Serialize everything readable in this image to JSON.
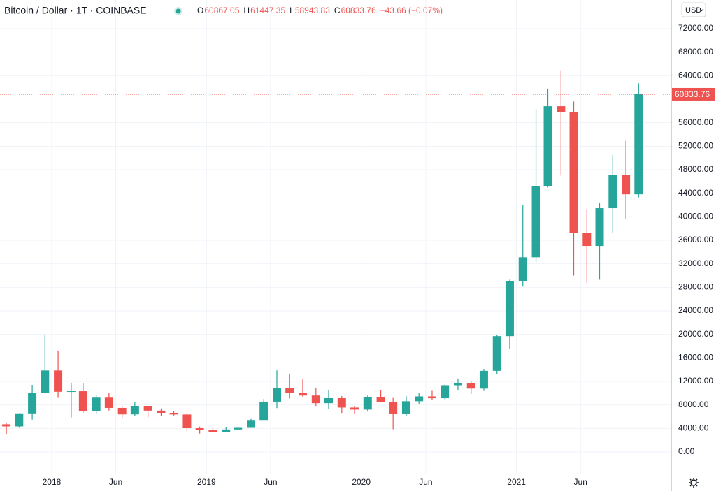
{
  "header": {
    "symbol": "Bitcoin / Dollar · 1T · COINBASE",
    "ohlc": [
      {
        "label": "O",
        "value": 60867.05
      },
      {
        "label": "H",
        "value": 61447.35
      },
      {
        "label": "L",
        "value": 58943.83
      },
      {
        "label": "C",
        "value": 60833.76
      }
    ],
    "change": "−43.66 (−0.07%)",
    "currency": "USD"
  },
  "chart_data": {
    "type": "candlestick",
    "up_color": "#26a69a",
    "down_color": "#ef5350",
    "grid": true,
    "x": [
      "2017-09",
      "2017-10",
      "2017-11",
      "2017-12",
      "2018-01",
      "2018-02",
      "2018-03",
      "2018-04",
      "2018-05",
      "2018-06",
      "2018-07",
      "2018-08",
      "2018-09",
      "2018-10",
      "2018-11",
      "2018-12",
      "2019-01",
      "2019-02",
      "2019-03",
      "2019-04",
      "2019-05",
      "2019-06",
      "2019-07",
      "2019-08",
      "2019-09",
      "2019-10",
      "2019-11",
      "2019-12",
      "2020-01",
      "2020-02",
      "2020-03",
      "2020-04",
      "2020-05",
      "2020-06",
      "2020-07",
      "2020-08",
      "2020-09",
      "2020-10",
      "2020-11",
      "2020-12",
      "2021-01",
      "2021-02",
      "2021-03",
      "2021-04",
      "2021-05",
      "2021-06",
      "2021-07",
      "2021-08",
      "2021-09",
      "2021-10"
    ],
    "open": [
      4700,
      4340,
      6440,
      10000,
      13860,
      10240,
      10330,
      6930,
      9240,
      7490,
      6390,
      7730,
      7030,
      6630,
      6370,
      4040,
      3690,
      3440,
      3820,
      4100,
      5320,
      8560,
      10820,
      10080,
      9600,
      8300,
      9150,
      7550,
      7200,
      9350,
      8540,
      6420,
      8630,
      9450,
      9140,
      11350,
      11660,
      10780,
      13800,
      19700,
      28990,
      33110,
      45160,
      58800,
      57750,
      37300,
      35040,
      41460,
      47100,
      43820
    ],
    "high": [
      4975,
      6470,
      11400,
      19890,
      17250,
      11780,
      11700,
      9750,
      10000,
      7770,
      8500,
      7760,
      7400,
      7000,
      6600,
      4300,
      4070,
      4190,
      4140,
      5620,
      9000,
      13880,
      13200,
      12330,
      10900,
      10540,
      9520,
      7750,
      9580,
      10500,
      9200,
      9470,
      10080,
      10400,
      11450,
      12480,
      12070,
      14100,
      19940,
      29300,
      41990,
      58350,
      61790,
      64900,
      59600,
      41300,
      42300,
      50500,
      52900,
      62700
    ],
    "low": [
      2980,
      4110,
      5500,
      10400,
      9200,
      5870,
      6600,
      6430,
      7040,
      5780,
      6100,
      5880,
      6100,
      6200,
      3550,
      3130,
      3350,
      3380,
      3730,
      4090,
      5330,
      7460,
      9100,
      9350,
      7710,
      7300,
      6510,
      6430,
      6870,
      8460,
      3860,
      6150,
      8100,
      8900,
      8990,
      10550,
      9880,
      10380,
      13200,
      17600,
      28130,
      32300,
      45000,
      47000,
      30000,
      28800,
      29300,
      37300,
      39600,
      43300
    ],
    "close": [
      4340,
      6440,
      10000,
      13860,
      10240,
      10330,
      6930,
      9240,
      7490,
      6390,
      7730,
      7030,
      6630,
      6370,
      4040,
      3690,
      3440,
      3820,
      4100,
      5320,
      8560,
      10820,
      10080,
      9600,
      8300,
      9150,
      7550,
      7200,
      9350,
      8540,
      6420,
      8630,
      9450,
      9140,
      11350,
      11660,
      10780,
      13800,
      19700,
      28990,
      33110,
      45160,
      58800,
      57750,
      37300,
      35040,
      41460,
      47100,
      43820,
      60833.76
    ],
    "last_price": 60833.76,
    "xlim": [
      "2017-09",
      "2022-01"
    ],
    "xticks": [
      {
        "value": "2018-01",
        "label": "2018"
      },
      {
        "value": "2018-06",
        "label": "Jun"
      },
      {
        "value": "2019-01",
        "label": "2019"
      },
      {
        "value": "2019-06",
        "label": "Jun"
      },
      {
        "value": "2020-01",
        "label": "2020"
      },
      {
        "value": "2020-06",
        "label": "Jun"
      },
      {
        "value": "2021-01",
        "label": "2021"
      },
      {
        "value": "2021-06",
        "label": "Jun"
      }
    ],
    "ylim": [
      -3683,
      76870
    ],
    "yticks": [
      {
        "value": 0,
        "label": "0.00"
      },
      {
        "value": 4000,
        "label": "4000.00"
      },
      {
        "value": 8000,
        "label": "8000.00"
      },
      {
        "value": 12000,
        "label": "12000.00"
      },
      {
        "value": 16000,
        "label": "16000.00"
      },
      {
        "value": 20000,
        "label": "20000.00"
      },
      {
        "value": 24000,
        "label": "24000.00"
      },
      {
        "value": 28000,
        "label": "28000.00"
      },
      {
        "value": 32000,
        "label": "32000.00"
      },
      {
        "value": 36000,
        "label": "36000.00"
      },
      {
        "value": 40000,
        "label": "40000.00"
      },
      {
        "value": 44000,
        "label": "44000.00"
      },
      {
        "value": 48000,
        "label": "48000.00"
      },
      {
        "value": 52000,
        "label": "52000.00"
      },
      {
        "value": 56000,
        "label": "56000.00"
      },
      {
        "value": 64000,
        "label": "64000.00"
      },
      {
        "value": 68000,
        "label": "68000.00"
      },
      {
        "value": 72000,
        "label": "72000.00"
      }
    ]
  }
}
